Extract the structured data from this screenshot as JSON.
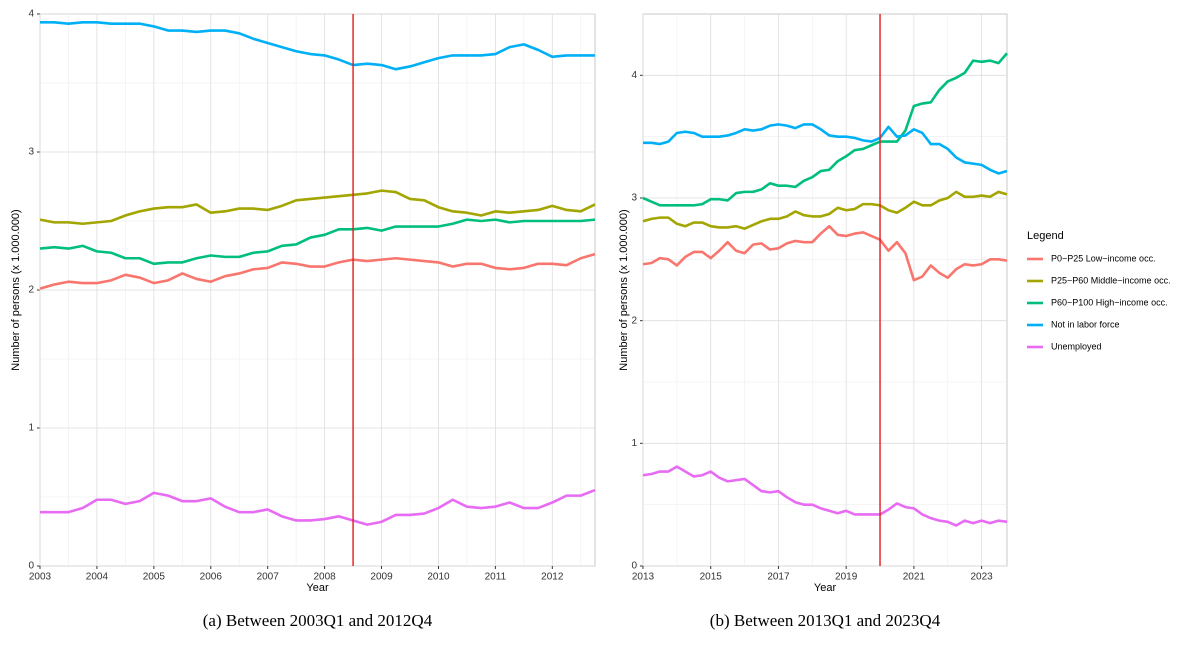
{
  "chart_data": [
    {
      "type": "line",
      "caption": "(a) Between 2003Q1 and 2012Q4",
      "x_label": "Year",
      "y_label": "Number of persons (x 1.000.000)",
      "x": [
        2003,
        2003.25,
        2003.5,
        2003.75,
        2004,
        2004.25,
        2004.5,
        2004.75,
        2005,
        2005.25,
        2005.5,
        2005.75,
        2006,
        2006.25,
        2006.5,
        2006.75,
        2007,
        2007.25,
        2007.5,
        2007.75,
        2008,
        2008.25,
        2008.5,
        2008.75,
        2009,
        2009.25,
        2009.5,
        2009.75,
        2010,
        2010.25,
        2010.5,
        2010.75,
        2011,
        2011.25,
        2011.5,
        2011.75,
        2012,
        2012.25,
        2012.5,
        2012.75
      ],
      "xlim": [
        2003,
        2012.75
      ],
      "xticks": [
        2003,
        2004,
        2005,
        2006,
        2007,
        2008,
        2009,
        2010,
        2011,
        2012
      ],
      "ylim": [
        0,
        4
      ],
      "yticks": [
        0,
        1,
        2,
        3,
        4
      ],
      "grid": true,
      "vline": 2008.5,
      "vline_color": "#e31a1c",
      "series": [
        {
          "name": "P0−P25 Low−income occ.",
          "color": "#F8766D",
          "values": [
            2.01,
            2.04,
            2.06,
            2.05,
            2.05,
            2.07,
            2.11,
            2.09,
            2.05,
            2.07,
            2.12,
            2.08,
            2.06,
            2.1,
            2.12,
            2.15,
            2.16,
            2.2,
            2.19,
            2.17,
            2.17,
            2.2,
            2.22,
            2.21,
            2.22,
            2.23,
            2.22,
            2.21,
            2.2,
            2.17,
            2.19,
            2.19,
            2.16,
            2.15,
            2.16,
            2.19,
            2.19,
            2.18,
            2.23,
            2.26
          ]
        },
        {
          "name": "P25−P60 Middle−income occ.",
          "color": "#A3A500",
          "values": [
            2.51,
            2.49,
            2.49,
            2.48,
            2.49,
            2.5,
            2.54,
            2.57,
            2.59,
            2.6,
            2.6,
            2.62,
            2.56,
            2.57,
            2.59,
            2.59,
            2.58,
            2.61,
            2.65,
            2.66,
            2.67,
            2.68,
            2.69,
            2.7,
            2.72,
            2.71,
            2.66,
            2.65,
            2.6,
            2.57,
            2.56,
            2.54,
            2.57,
            2.56,
            2.57,
            2.58,
            2.61,
            2.58,
            2.57,
            2.62
          ]
        },
        {
          "name": "P60−P100 High−income occ.",
          "color": "#00BF7D",
          "values": [
            2.3,
            2.31,
            2.3,
            2.32,
            2.28,
            2.27,
            2.23,
            2.23,
            2.19,
            2.2,
            2.2,
            2.23,
            2.25,
            2.24,
            2.24,
            2.27,
            2.28,
            2.32,
            2.33,
            2.38,
            2.4,
            2.44,
            2.44,
            2.45,
            2.43,
            2.46,
            2.46,
            2.46,
            2.46,
            2.48,
            2.51,
            2.5,
            2.51,
            2.49,
            2.5,
            2.5,
            2.5,
            2.5,
            2.5,
            2.51
          ]
        },
        {
          "name": "Not in labor force",
          "color": "#00B0F6",
          "values": [
            3.94,
            3.94,
            3.93,
            3.94,
            3.94,
            3.93,
            3.93,
            3.93,
            3.91,
            3.88,
            3.88,
            3.87,
            3.88,
            3.88,
            3.86,
            3.82,
            3.79,
            3.76,
            3.73,
            3.71,
            3.7,
            3.67,
            3.63,
            3.64,
            3.63,
            3.6,
            3.62,
            3.65,
            3.68,
            3.7,
            3.7,
            3.7,
            3.71,
            3.76,
            3.78,
            3.74,
            3.69,
            3.7,
            3.7,
            3.7
          ]
        },
        {
          "name": "Unemployed",
          "color": "#E76BF3",
          "values": [
            0.39,
            0.39,
            0.39,
            0.42,
            0.48,
            0.48,
            0.45,
            0.47,
            0.53,
            0.51,
            0.47,
            0.47,
            0.49,
            0.43,
            0.39,
            0.39,
            0.41,
            0.36,
            0.33,
            0.33,
            0.34,
            0.36,
            0.33,
            0.3,
            0.32,
            0.37,
            0.37,
            0.38,
            0.42,
            0.48,
            0.43,
            0.42,
            0.43,
            0.46,
            0.42,
            0.42,
            0.46,
            0.51,
            0.51,
            0.55
          ]
        }
      ]
    },
    {
      "type": "line",
      "caption": "(b) Between 2013Q1 and 2023Q4",
      "x_label": "Year",
      "y_label": "Number of persons (x 1.000.000)",
      "x": [
        2013,
        2013.25,
        2013.5,
        2013.75,
        2014,
        2014.25,
        2014.5,
        2014.75,
        2015,
        2015.25,
        2015.5,
        2015.75,
        2016,
        2016.25,
        2016.5,
        2016.75,
        2017,
        2017.25,
        2017.5,
        2017.75,
        2018,
        2018.25,
        2018.5,
        2018.75,
        2019,
        2019.25,
        2019.5,
        2019.75,
        2020,
        2020.25,
        2020.5,
        2020.75,
        2021,
        2021.25,
        2021.5,
        2021.75,
        2022,
        2022.25,
        2022.5,
        2022.75,
        2023,
        2023.25,
        2023.5,
        2023.75
      ],
      "xlim": [
        2013,
        2023.75
      ],
      "xticks": [
        2013,
        2015,
        2017,
        2019,
        2021,
        2023
      ],
      "ylim": [
        0,
        4.5
      ],
      "yticks": [
        0,
        1,
        2,
        3,
        4
      ],
      "grid": true,
      "vline": 2020,
      "vline_color": "#e31a1c",
      "legend_title": "Legend",
      "series": [
        {
          "name": "P0−P25 Low−income occ.",
          "color": "#F8766D",
          "values": [
            2.46,
            2.47,
            2.51,
            2.5,
            2.45,
            2.52,
            2.56,
            2.56,
            2.51,
            2.57,
            2.64,
            2.57,
            2.55,
            2.62,
            2.63,
            2.58,
            2.59,
            2.63,
            2.65,
            2.64,
            2.64,
            2.71,
            2.77,
            2.7,
            2.69,
            2.71,
            2.72,
            2.69,
            2.66,
            2.57,
            2.64,
            2.55,
            2.33,
            2.36,
            2.45,
            2.39,
            2.35,
            2.42,
            2.46,
            2.45,
            2.46,
            2.5,
            2.5,
            2.49
          ]
        },
        {
          "name": "P25−P60 Middle−income occ.",
          "color": "#A3A500",
          "values": [
            2.81,
            2.83,
            2.84,
            2.84,
            2.79,
            2.77,
            2.8,
            2.8,
            2.77,
            2.76,
            2.76,
            2.77,
            2.75,
            2.78,
            2.81,
            2.83,
            2.83,
            2.85,
            2.89,
            2.86,
            2.85,
            2.85,
            2.87,
            2.92,
            2.9,
            2.91,
            2.95,
            2.95,
            2.94,
            2.9,
            2.88,
            2.92,
            2.97,
            2.94,
            2.94,
            2.98,
            3.0,
            3.05,
            3.01,
            3.01,
            3.02,
            3.01,
            3.05,
            3.03
          ]
        },
        {
          "name": "P60−P100 High−income occ.",
          "color": "#00BF7D",
          "values": [
            3.0,
            2.97,
            2.94,
            2.94,
            2.94,
            2.94,
            2.94,
            2.95,
            2.99,
            2.99,
            2.98,
            3.04,
            3.05,
            3.05,
            3.07,
            3.12,
            3.1,
            3.1,
            3.09,
            3.14,
            3.17,
            3.22,
            3.23,
            3.3,
            3.34,
            3.39,
            3.4,
            3.43,
            3.46,
            3.46,
            3.46,
            3.55,
            3.75,
            3.77,
            3.78,
            3.88,
            3.95,
            3.98,
            4.02,
            4.12,
            4.11,
            4.12,
            4.1,
            4.18
          ]
        },
        {
          "name": "Not in labor force",
          "color": "#00B0F6",
          "values": [
            3.45,
            3.45,
            3.44,
            3.46,
            3.53,
            3.54,
            3.53,
            3.5,
            3.5,
            3.5,
            3.51,
            3.53,
            3.56,
            3.55,
            3.56,
            3.59,
            3.6,
            3.59,
            3.57,
            3.6,
            3.6,
            3.56,
            3.51,
            3.5,
            3.5,
            3.49,
            3.47,
            3.46,
            3.49,
            3.58,
            3.5,
            3.51,
            3.56,
            3.53,
            3.44,
            3.44,
            3.4,
            3.33,
            3.29,
            3.28,
            3.27,
            3.23,
            3.2,
            3.22
          ]
        },
        {
          "name": "Unemployed",
          "color": "#E76BF3",
          "values": [
            0.74,
            0.75,
            0.77,
            0.77,
            0.81,
            0.77,
            0.73,
            0.74,
            0.77,
            0.72,
            0.69,
            0.7,
            0.71,
            0.66,
            0.61,
            0.6,
            0.61,
            0.56,
            0.52,
            0.5,
            0.5,
            0.47,
            0.45,
            0.43,
            0.45,
            0.42,
            0.42,
            0.42,
            0.42,
            0.46,
            0.51,
            0.48,
            0.47,
            0.42,
            0.39,
            0.37,
            0.36,
            0.33,
            0.37,
            0.35,
            0.37,
            0.35,
            0.37,
            0.36
          ]
        }
      ]
    }
  ]
}
